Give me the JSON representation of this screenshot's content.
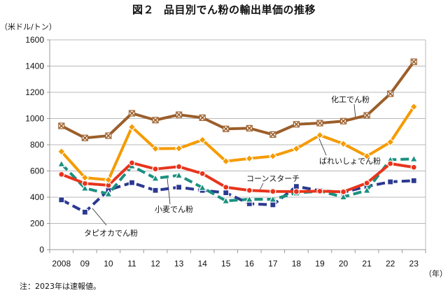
{
  "title_fig": "図２",
  "title_text": "品目別でん粉の輸出単価の推移",
  "unit_label": "（米ドル/トン）",
  "x_unit_label": "（年）",
  "note": "注：2023年は速報値。",
  "chart_data": {
    "type": "line",
    "title": "図２　品目別でん粉の輸出単価の推移",
    "xlabel": "（年）",
    "ylabel": "（米ドル/トン）",
    "ylim": [
      0,
      1600
    ],
    "yticks": [
      0,
      200,
      400,
      600,
      800,
      1000,
      1200,
      1400,
      1600
    ],
    "grid": true,
    "legend": "inline-annotations",
    "categories": [
      "2008",
      "09",
      "10",
      "11",
      "12",
      "13",
      "14",
      "15",
      "16",
      "17",
      "18",
      "19",
      "20",
      "21",
      "22",
      "23"
    ],
    "series": [
      {
        "name": "化工でん粉",
        "color": "#9B5E2A",
        "marker": "square-x",
        "dash": "solid",
        "values": [
          944,
          852,
          869,
          1040,
          988,
          1029,
          1006,
          921,
          926,
          878,
          956,
          965,
          980,
          1024,
          1189,
          1433
        ]
      },
      {
        "name": "ばれいしょでん粉",
        "color": "#F59B00",
        "marker": "diamond",
        "dash": "solid",
        "values": [
          748,
          549,
          532,
          935,
          770,
          772,
          837,
          674,
          695,
          713,
          770,
          873,
          807,
          713,
          820,
          1090
        ]
      },
      {
        "name": "コーンスターチ",
        "color": "#E8341C",
        "marker": "circle",
        "dash": "solid",
        "values": [
          574,
          505,
          491,
          662,
          615,
          633,
          580,
          476,
          452,
          444,
          443,
          446,
          441,
          508,
          656,
          628
        ]
      },
      {
        "name": "小麦でん粉",
        "color": "#1A9080",
        "marker": "triangle",
        "dash": "dashed",
        "values": [
          654,
          469,
          425,
          638,
          544,
          567,
          473,
          372,
          384,
          384,
          432,
          446,
          402,
          452,
          686,
          692
        ]
      },
      {
        "name": "タピオカでん粉",
        "color": "#2B3990",
        "marker": "square",
        "dash": "dashed",
        "values": [
          380,
          286,
          455,
          511,
          452,
          476,
          452,
          434,
          350,
          342,
          482,
          450,
          437,
          482,
          517,
          526
        ]
      }
    ]
  }
}
